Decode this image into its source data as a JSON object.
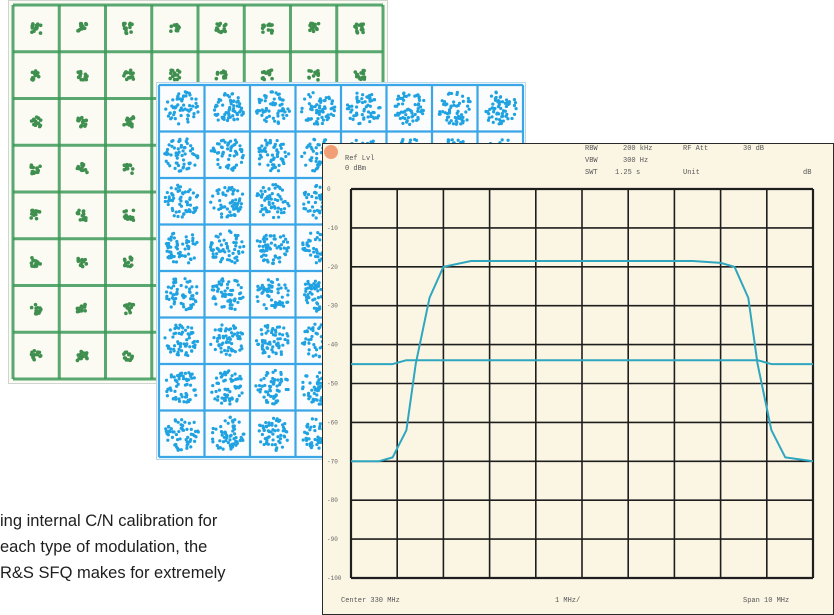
{
  "colors": {
    "qam16_grid": "#3c9a58",
    "qam16_dots": "#3f8f4f",
    "qam64_grid": "#3aa6e8",
    "qam64_dots": "#1fa2e2",
    "trace": "#2fa6c0",
    "grid": "#1e1e1e",
    "paper": "#fbf6e4",
    "spot": "#f08a5d"
  },
  "constellation_16": {
    "dot_marks": "green blobs",
    "rows": 8,
    "cols": 8
  },
  "constellation_64": {
    "dot_marks": "cyan clusters",
    "rows": 8,
    "cols": 8
  },
  "analyzer": {
    "top_labels": {
      "ref_lvl": "Ref Lvl",
      "ref_val": "0 dBm",
      "rbw": "RBW",
      "rbw_val": "200 kHz",
      "rf_att": "RF Att",
      "rf_att_val": "30 dB",
      "vbw": "VBW",
      "vbw_val": "300 Hz",
      "swt": "SWT",
      "swt_val": "1.25 s",
      "unit": "Unit",
      "unit_val": "dB"
    },
    "bottom_labels": {
      "center": "Center 330 MHz",
      "div": "1 MHz/",
      "span": "Span 10 MHz"
    }
  },
  "chart_data": {
    "type": "line",
    "xlabel": "",
    "ylabel": "",
    "xlim": [
      325,
      335
    ],
    "ylim": [
      -100,
      0
    ],
    "y_ticks": [
      "0",
      "-10",
      "-20",
      "-30",
      "-40",
      "-50",
      "-60",
      "-70",
      "-80",
      "-90",
      "-100"
    ],
    "grid": true,
    "series": [
      {
        "name": "",
        "x": [
          325,
          325.6,
          325.9,
          326.2,
          326.4,
          326.7,
          327.0,
          327.6,
          328.5,
          330,
          331.5,
          332.4,
          333.0,
          333.3,
          333.6,
          333.8,
          334.1,
          334.4,
          335
        ],
        "y": [
          -70,
          -70,
          -69,
          -62,
          -45,
          -28,
          -20,
          -18.5,
          -18.5,
          -18.5,
          -18.5,
          -18.5,
          -19,
          -20,
          -28,
          -45,
          -62,
          -69,
          -70
        ]
      },
      {
        "name": "",
        "x": [
          325,
          325.9,
          326.2,
          333.8,
          334.1,
          335
        ],
        "y": [
          -45,
          -45,
          -44,
          -44,
          -45,
          -45
        ]
      }
    ]
  },
  "body_text": [
    "ing internal C/N calibration for",
    "each type of modulation, the",
    "R&S SFQ makes for extremely"
  ]
}
